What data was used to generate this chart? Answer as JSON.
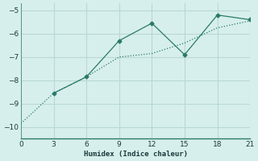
{
  "xlabel": "Humidex (Indice chaleur)",
  "ylabel": "",
  "bg_color": "#d7efec",
  "grid_color": "#b8d8d4",
  "line_color": "#2a7a6a",
  "xlim": [
    0,
    21
  ],
  "ylim": [
    -10.5,
    -4.7
  ],
  "xticks": [
    0,
    3,
    6,
    9,
    12,
    15,
    18,
    21
  ],
  "yticks": [
    -10,
    -9,
    -8,
    -7,
    -6,
    -5
  ],
  "line1_x": [
    0,
    3,
    6,
    9,
    12,
    15,
    18,
    21
  ],
  "line1_y": [
    -9.85,
    -8.55,
    -7.85,
    -7.0,
    -6.85,
    -6.4,
    -5.75,
    -5.45
  ],
  "line2_x": [
    3,
    6,
    9,
    12,
    15,
    18,
    21
  ],
  "line2_y": [
    -8.55,
    -7.85,
    -6.3,
    -5.55,
    -6.9,
    -5.2,
    -5.4
  ]
}
